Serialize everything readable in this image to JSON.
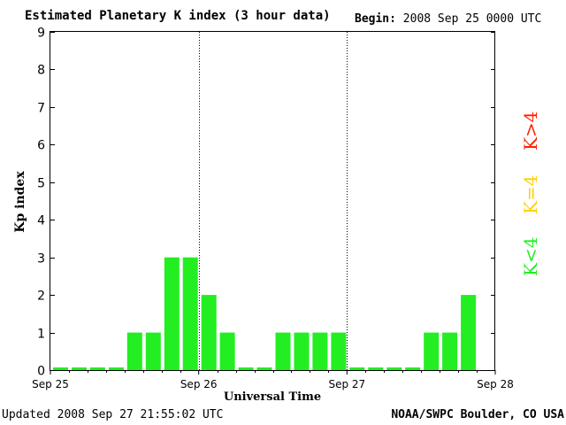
{
  "title": "Estimated Planetary K index (3 hour data)",
  "begin": {
    "label": "Begin:",
    "value": "2008 Sep 25 0000 UTC"
  },
  "footer": {
    "updated_label": "Updated",
    "updated_value": "2008 Sep 27 21:55:02 UTC",
    "credit": "NOAA/SWPC Boulder, CO USA"
  },
  "legend": [
    {
      "label": "K>4",
      "color": "#ff2000"
    },
    {
      "label": "K=4",
      "color": "#ffd000"
    },
    {
      "label": "K<4",
      "color": "#22ee22"
    }
  ],
  "chart_data": {
    "type": "bar",
    "title": "Estimated Planetary K index (3 hour data)",
    "ylabel": "Kp index",
    "xlabel": "Universal Time",
    "ylim": [
      0,
      9
    ],
    "yticks": [
      0,
      1,
      2,
      3,
      4,
      5,
      6,
      7,
      8,
      9
    ],
    "xticks": [
      "Sep 25",
      "Sep 26",
      "Sep 27",
      "Sep 28"
    ],
    "interval_hours": 3,
    "bar_color": "#22ee22",
    "series": [
      {
        "values": [
          0,
          0,
          0,
          0,
          1,
          1,
          3,
          3,
          2,
          1,
          0,
          0,
          1,
          1,
          1,
          1,
          0,
          0,
          0,
          0,
          1,
          1,
          2
        ]
      }
    ]
  }
}
